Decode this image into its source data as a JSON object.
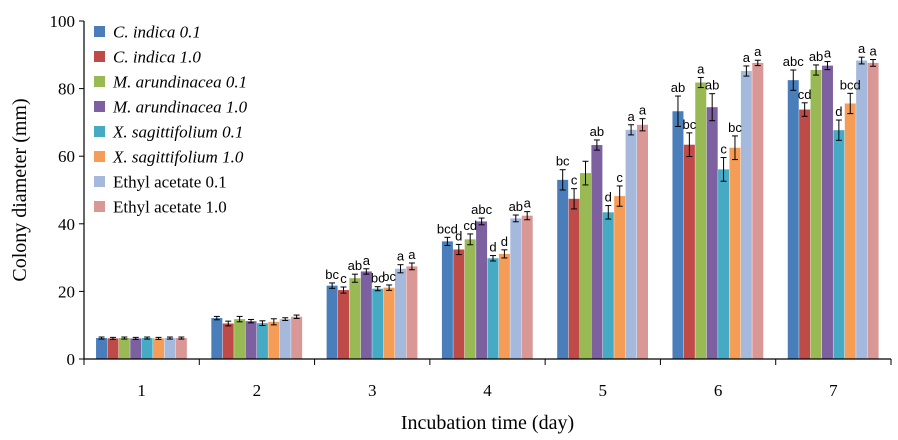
{
  "chart_data": {
    "type": "bar",
    "xlabel": "Incubation time (day)",
    "ylabel": "Colony diameter  (mm)",
    "ylim": [
      0,
      100
    ],
    "yticks": [
      0,
      20,
      40,
      60,
      80,
      100
    ],
    "categories": [
      "1",
      "2",
      "3",
      "4",
      "5",
      "6",
      "7"
    ],
    "legend_position": "top-left",
    "series": [
      {
        "name": "C. indica 0.1",
        "italic": true,
        "color": "#4A7EBB",
        "values": [
          6.2,
          12.1,
          21.7,
          34.8,
          53.0,
          73.3,
          82.5
        ],
        "errors": [
          0.3,
          0.5,
          0.8,
          1.2,
          3.0,
          4.5,
          3.0
        ],
        "labels": [
          "",
          "",
          "bc",
          "bcd",
          "bc",
          "ab",
          "abc"
        ]
      },
      {
        "name": "C. indica 1.0",
        "italic": true,
        "color": "#BE4B48",
        "values": [
          6.1,
          10.5,
          20.4,
          32.4,
          47.4,
          63.4,
          73.8
        ],
        "errors": [
          0.3,
          0.7,
          0.9,
          1.5,
          3.0,
          3.5,
          2.0
        ],
        "labels": [
          "",
          "",
          "c",
          "d",
          "c",
          "bc",
          "cd"
        ]
      },
      {
        "name": "M. arundinacea 0.1",
        "italic": true,
        "color": "#98B954",
        "values": [
          6.2,
          11.8,
          23.9,
          35.4,
          55.0,
          81.8,
          85.5
        ],
        "errors": [
          0.3,
          0.8,
          1.2,
          1.6,
          3.5,
          1.5,
          1.5
        ],
        "labels": [
          "",
          "",
          "ab",
          "cd",
          "",
          "a",
          "ab"
        ]
      },
      {
        "name": "M. arundinacea 1.0",
        "italic": true,
        "color": "#7D60A0",
        "values": [
          6.1,
          11.2,
          25.9,
          40.7,
          63.3,
          74.5,
          86.8
        ],
        "errors": [
          0.3,
          0.5,
          0.8,
          1.0,
          1.5,
          4.0,
          1.2
        ],
        "labels": [
          "",
          "",
          "a",
          "abc",
          "ab",
          "ab",
          "a"
        ]
      },
      {
        "name": "X. sagittifolium 0.1",
        "italic": true,
        "color": "#46AAC5",
        "values": [
          6.2,
          10.6,
          20.8,
          29.8,
          43.4,
          56.1,
          67.7
        ],
        "errors": [
          0.3,
          0.7,
          0.6,
          0.8,
          2.0,
          3.5,
          3.0
        ],
        "labels": [
          "",
          "",
          "bc",
          "d",
          "d",
          "c",
          "d"
        ]
      },
      {
        "name": "X. sagittifolium 1.0",
        "italic": true,
        "color": "#F59D56",
        "values": [
          6.1,
          11.0,
          21.1,
          31.1,
          48.2,
          62.5,
          75.6
        ],
        "errors": [
          0.3,
          0.9,
          0.8,
          1.2,
          3.0,
          3.5,
          3.0
        ],
        "labels": [
          "",
          "",
          "bc",
          "d",
          "c",
          "bc",
          "bcd"
        ]
      },
      {
        "name": "Ethyl acetate 0.1",
        "italic": false,
        "color": "#A5B9DC",
        "values": [
          6.2,
          11.8,
          26.7,
          41.6,
          67.8,
          85.2,
          88.3
        ],
        "errors": [
          0.3,
          0.4,
          1.2,
          1.0,
          1.5,
          1.5,
          1.0
        ],
        "labels": [
          "",
          "",
          "a",
          "ab",
          "a",
          "a",
          "a"
        ]
      },
      {
        "name": "Ethyl acetate 1.0",
        "italic": false,
        "color": "#D99795",
        "values": [
          6.2,
          12.5,
          27.4,
          42.4,
          69.3,
          87.6,
          87.6
        ],
        "errors": [
          0.3,
          0.5,
          1.0,
          1.2,
          1.8,
          0.8,
          1.0
        ],
        "labels": [
          "",
          "",
          "a",
          "a",
          "a",
          "a",
          "a"
        ]
      }
    ]
  }
}
